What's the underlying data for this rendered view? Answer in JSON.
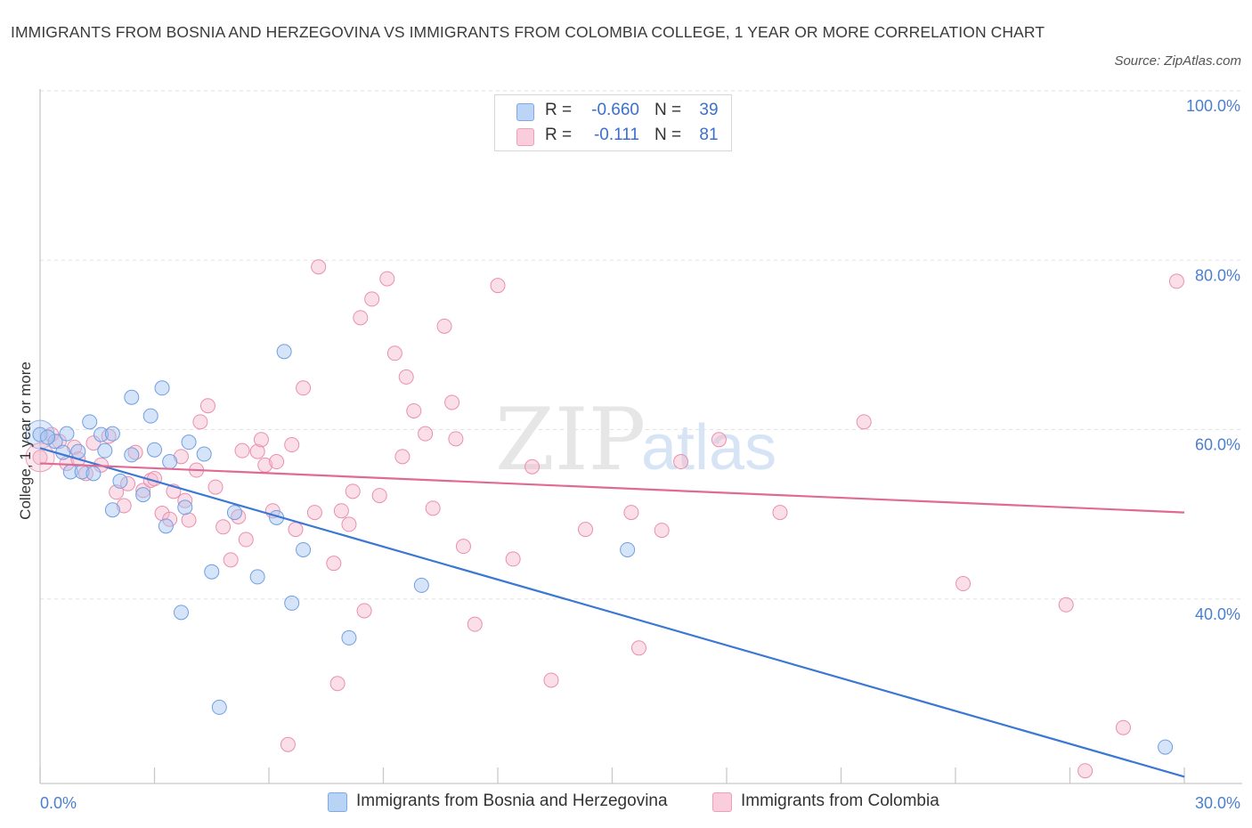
{
  "title": "IMMIGRANTS FROM BOSNIA AND HERZEGOVINA VS IMMIGRANTS FROM COLOMBIA COLLEGE, 1 YEAR OR MORE CORRELATION CHART",
  "source": "Source: ZipAtlas.com",
  "watermark": {
    "zip": "ZIP",
    "atlas": "atlas"
  },
  "legend": {
    "rows": [
      {
        "r_label": "R =",
        "r_value": "-0.660",
        "n_label": "N =",
        "n_value": "39",
        "color": "#a9c8f2",
        "border": "#6f9fe0"
      },
      {
        "r_label": "R =",
        "r_value": "-0.111",
        "n_label": "N =",
        "n_value": "81",
        "color": "#f7c0d2",
        "border": "#e98fae"
      }
    ]
  },
  "bottom_legend": [
    {
      "label": "Immigrants from Bosnia and Herzegovina",
      "color": "#b9d3f5",
      "border": "#7fa8e6"
    },
    {
      "label": "Immigrants from Colombia",
      "color": "#f9cddb",
      "border": "#eaa0b9"
    }
  ],
  "chart_data": {
    "type": "scatter",
    "ylabel": "College, 1 year or more",
    "xlabel": "",
    "x_tick_labels": [
      "0.0%",
      "30.0%"
    ],
    "y_tick_labels": [
      "100.0%",
      "80.0%",
      "60.0%",
      "40.0%"
    ],
    "xlim": [
      0,
      30
    ],
    "ylim": [
      20,
      102
    ],
    "y_ticks": [
      100,
      80,
      60,
      40
    ],
    "grid": true,
    "series": [
      {
        "name": "Immigrants from Bosnia and Herzegovina",
        "color": "#6f9fe0",
        "fill": "rgba(164,196,242,0.45)",
        "trend": {
          "x": [
            0,
            30
          ],
          "y": [
            59.6,
            20.8
          ],
          "color": "#3a78d4"
        },
        "points": [
          [
            0.0,
            61.2
          ],
          [
            0.4,
            60.4
          ],
          [
            0.6,
            59.1
          ],
          [
            0.7,
            61.3
          ],
          [
            0.8,
            56.8
          ],
          [
            1.0,
            59.2
          ],
          [
            1.1,
            56.8
          ],
          [
            1.3,
            62.7
          ],
          [
            1.4,
            56.6
          ],
          [
            1.6,
            61.2
          ],
          [
            1.7,
            59.3
          ],
          [
            1.9,
            52.3
          ],
          [
            1.9,
            61.3
          ],
          [
            2.1,
            55.7
          ],
          [
            2.4,
            58.8
          ],
          [
            2.4,
            65.6
          ],
          [
            2.7,
            54.1
          ],
          [
            2.9,
            63.4
          ],
          [
            3.0,
            59.4
          ],
          [
            3.2,
            66.7
          ],
          [
            3.3,
            50.4
          ],
          [
            3.4,
            58.0
          ],
          [
            3.7,
            40.2
          ],
          [
            3.8,
            52.6
          ],
          [
            3.9,
            60.3
          ],
          [
            4.3,
            58.9
          ],
          [
            4.5,
            45.0
          ],
          [
            4.7,
            29.0
          ],
          [
            5.1,
            52.0
          ],
          [
            5.7,
            44.4
          ],
          [
            6.2,
            51.4
          ],
          [
            6.4,
            71.0
          ],
          [
            6.6,
            41.3
          ],
          [
            6.9,
            47.6
          ],
          [
            8.1,
            37.2
          ],
          [
            10.0,
            43.4
          ],
          [
            15.4,
            47.6
          ],
          [
            29.5,
            24.3
          ],
          [
            0.2,
            60.9
          ]
        ]
      },
      {
        "name": "Immigrants from Colombia",
        "color": "#e98fae",
        "fill": "rgba(247,185,205,0.45)",
        "trend": {
          "x": [
            0,
            30
          ],
          "y": [
            57.8,
            52.0
          ],
          "color": "#e06a95"
        },
        "points": [
          [
            0.0,
            58.5
          ],
          [
            0.3,
            61.2
          ],
          [
            0.5,
            60.4
          ],
          [
            0.7,
            57.8
          ],
          [
            0.9,
            59.7
          ],
          [
            1.0,
            58.3
          ],
          [
            1.2,
            56.6
          ],
          [
            1.4,
            60.2
          ],
          [
            1.6,
            57.6
          ],
          [
            1.8,
            61.0
          ],
          [
            2.0,
            54.4
          ],
          [
            2.2,
            52.8
          ],
          [
            2.3,
            55.4
          ],
          [
            2.5,
            59.1
          ],
          [
            2.7,
            54.6
          ],
          [
            2.9,
            55.8
          ],
          [
            3.0,
            56.0
          ],
          [
            3.2,
            51.9
          ],
          [
            3.4,
            51.2
          ],
          [
            3.5,
            54.5
          ],
          [
            3.7,
            58.6
          ],
          [
            3.8,
            53.4
          ],
          [
            3.9,
            51.1
          ],
          [
            4.1,
            57.0
          ],
          [
            4.2,
            62.7
          ],
          [
            4.4,
            64.6
          ],
          [
            4.6,
            55.0
          ],
          [
            4.8,
            50.3
          ],
          [
            5.0,
            46.4
          ],
          [
            5.2,
            51.5
          ],
          [
            5.3,
            59.3
          ],
          [
            5.4,
            48.8
          ],
          [
            5.7,
            59.2
          ],
          [
            5.8,
            60.6
          ],
          [
            5.9,
            57.6
          ],
          [
            6.1,
            52.2
          ],
          [
            6.2,
            58.0
          ],
          [
            6.5,
            24.6
          ],
          [
            6.6,
            60.0
          ],
          [
            6.7,
            50.0
          ],
          [
            6.9,
            66.7
          ],
          [
            7.2,
            52.0
          ],
          [
            7.3,
            81.0
          ],
          [
            7.7,
            46.0
          ],
          [
            7.8,
            31.8
          ],
          [
            7.9,
            52.2
          ],
          [
            8.1,
            50.6
          ],
          [
            8.2,
            54.5
          ],
          [
            8.4,
            75.0
          ],
          [
            8.5,
            40.4
          ],
          [
            8.7,
            77.2
          ],
          [
            8.9,
            54.0
          ],
          [
            9.1,
            79.6
          ],
          [
            9.3,
            70.8
          ],
          [
            9.5,
            58.6
          ],
          [
            9.6,
            68.0
          ],
          [
            9.8,
            64.0
          ],
          [
            10.1,
            61.3
          ],
          [
            10.3,
            52.5
          ],
          [
            10.6,
            74.0
          ],
          [
            10.8,
            65.0
          ],
          [
            10.9,
            60.7
          ],
          [
            11.1,
            48.0
          ],
          [
            11.4,
            38.8
          ],
          [
            12.0,
            78.8
          ],
          [
            12.4,
            46.5
          ],
          [
            12.9,
            57.4
          ],
          [
            13.4,
            32.2
          ],
          [
            14.3,
            50.0
          ],
          [
            15.5,
            52.0
          ],
          [
            15.7,
            36.0
          ],
          [
            16.3,
            49.9
          ],
          [
            16.8,
            58.0
          ],
          [
            17.8,
            60.6
          ],
          [
            19.4,
            52.0
          ],
          [
            21.6,
            62.7
          ],
          [
            24.2,
            43.6
          ],
          [
            26.9,
            41.1
          ],
          [
            27.4,
            21.5
          ],
          [
            28.4,
            26.6
          ],
          [
            29.8,
            79.3
          ]
        ]
      }
    ]
  }
}
